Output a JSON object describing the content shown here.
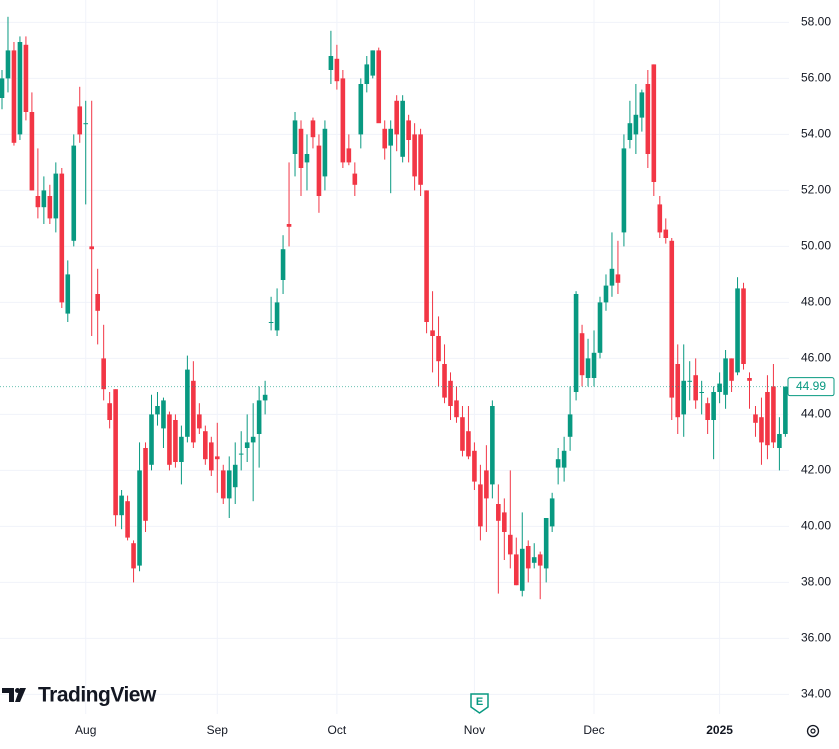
{
  "chart_data": {
    "type": "candlestick",
    "watermark": "TradingView",
    "earnings_marker": "E",
    "up_color": "#089981",
    "down_color": "#f23645",
    "ylim": [
      33.3,
      58.8
    ],
    "yticks": [
      {
        "value": 34,
        "label": "34.00"
      },
      {
        "value": 36,
        "label": "36.00"
      },
      {
        "value": 38,
        "label": "38.00"
      },
      {
        "value": 40,
        "label": "40.00"
      },
      {
        "value": 42,
        "label": "42.00"
      },
      {
        "value": 44,
        "label": "44.00"
      },
      {
        "value": 46,
        "label": "46.00"
      },
      {
        "value": 48,
        "label": "48.00"
      },
      {
        "value": 50,
        "label": "50.00"
      },
      {
        "value": 52,
        "label": "52.00"
      },
      {
        "value": 54,
        "label": "54.00"
      },
      {
        "value": 56,
        "label": "56.00"
      },
      {
        "value": 58,
        "label": "58.00"
      }
    ],
    "grid": true,
    "categories": [
      null,
      null,
      null,
      null,
      null,
      null,
      null,
      null,
      null,
      null,
      null,
      null,
      null,
      null,
      "Aug",
      null,
      null,
      null,
      null,
      null,
      null,
      null,
      null,
      null,
      null,
      null,
      null,
      null,
      null,
      null,
      null,
      null,
      null,
      null,
      null,
      null,
      "Sep",
      null,
      null,
      null,
      null,
      null,
      null,
      null,
      null,
      null,
      null,
      null,
      null,
      null,
      null,
      null,
      null,
      null,
      null,
      null,
      "Oct",
      null,
      null,
      null,
      null,
      null,
      null,
      null,
      null,
      null,
      null,
      null,
      null,
      null,
      null,
      null,
      null,
      null,
      null,
      null,
      null,
      null,
      null,
      "Nov",
      null,
      null,
      null,
      null,
      null,
      null,
      null,
      null,
      null,
      null,
      null,
      null,
      null,
      null,
      null,
      null,
      null,
      null,
      null,
      "Dec",
      null,
      null,
      null,
      null,
      null,
      null,
      null,
      null,
      null,
      null,
      null,
      null,
      null,
      null,
      null,
      null,
      null,
      null,
      null,
      null,
      "2025",
      null,
      null,
      null,
      null,
      null,
      null,
      null,
      null,
      null,
      null,
      null
    ],
    "ohlc": [
      [
        55.3,
        56.3,
        54.9,
        56.0
      ],
      [
        56.0,
        58.2,
        55.5,
        57.0
      ],
      [
        57.0,
        57.3,
        53.6,
        53.7
      ],
      [
        54.0,
        57.5,
        53.8,
        57.3
      ],
      [
        57.2,
        57.5,
        54.5,
        54.8
      ],
      [
        54.8,
        55.5,
        52.0,
        52.0
      ],
      [
        51.8,
        53.5,
        51.0,
        51.4
      ],
      [
        51.4,
        52.5,
        50.8,
        52.0
      ],
      [
        51.8,
        52.2,
        50.8,
        51.0
      ],
      [
        51.0,
        53.0,
        50.5,
        52.6
      ],
      [
        52.6,
        52.8,
        47.8,
        48.0
      ],
      [
        47.6,
        49.5,
        47.3,
        49.0
      ],
      [
        50.2,
        54.0,
        50.0,
        53.6
      ],
      [
        55.0,
        55.7,
        53.7,
        54.0
      ],
      [
        54.4,
        55.2,
        51.5,
        54.4
      ],
      [
        50.0,
        55.2,
        46.8,
        49.9
      ],
      [
        48.3,
        49.2,
        46.5,
        47.7
      ],
      [
        46.0,
        47.2,
        44.5,
        44.9
      ],
      [
        44.4,
        44.8,
        43.5,
        43.8
      ],
      [
        44.9,
        44.9,
        40.0,
        40.4
      ],
      [
        40.4,
        41.3,
        39.9,
        41.1
      ],
      [
        40.9,
        41.1,
        39.5,
        39.6
      ],
      [
        39.4,
        39.5,
        38.0,
        38.5
      ],
      [
        38.6,
        43.0,
        38.4,
        42.0
      ],
      [
        42.8,
        43.0,
        39.8,
        40.2
      ],
      [
        42.2,
        44.7,
        42.0,
        44.0
      ],
      [
        44.0,
        44.8,
        43.6,
        44.3
      ],
      [
        43.5,
        44.6,
        42.8,
        44.5
      ],
      [
        44.0,
        44.1,
        42.0,
        42.2
      ],
      [
        43.8,
        44.0,
        42.1,
        42.3
      ],
      [
        42.3,
        43.6,
        41.5,
        43.2
      ],
      [
        43.2,
        46.1,
        43.0,
        45.6
      ],
      [
        45.2,
        45.9,
        42.8,
        43.0
      ],
      [
        44.0,
        44.4,
        43.3,
        43.5
      ],
      [
        43.4,
        43.6,
        42.2,
        42.4
      ],
      [
        43.0,
        43.2,
        41.8,
        42.0
      ],
      [
        42.5,
        43.7,
        41.2,
        42.4
      ],
      [
        42.0,
        42.2,
        40.8,
        41.0
      ],
      [
        41.0,
        42.5,
        40.3,
        42.0
      ],
      [
        41.4,
        43.0,
        40.8,
        42.2
      ],
      [
        42.6,
        43.4,
        42.0,
        42.6
      ],
      [
        42.8,
        44.0,
        42.3,
        43.0
      ],
      [
        43.0,
        44.4,
        40.9,
        43.2
      ],
      [
        43.3,
        45.0,
        42.1,
        44.5
      ],
      [
        44.5,
        45.2,
        44.0,
        44.7
      ],
      [
        47.3,
        48.2,
        47.0,
        47.3
      ],
      [
        47.0,
        48.5,
        46.8,
        48.0
      ],
      [
        48.8,
        50.4,
        48.3,
        49.9
      ],
      [
        50.8,
        53.0,
        50.0,
        50.7
      ],
      [
        53.3,
        54.8,
        52.5,
        54.5
      ],
      [
        54.2,
        54.5,
        51.8,
        52.8
      ],
      [
        53.0,
        54.0,
        52.0,
        53.3
      ],
      [
        54.5,
        54.6,
        53.5,
        53.9
      ],
      [
        53.6,
        54.0,
        51.2,
        51.8
      ],
      [
        52.5,
        54.5,
        52.0,
        54.2
      ],
      [
        56.3,
        57.7,
        55.8,
        56.8
      ],
      [
        56.7,
        57.2,
        55.6,
        55.9
      ],
      [
        56.0,
        56.3,
        52.8,
        53.0
      ],
      [
        53.5,
        54.0,
        52.9,
        53.0
      ],
      [
        52.6,
        53.0,
        51.8,
        52.2
      ],
      [
        54.0,
        56.0,
        53.5,
        55.8
      ],
      [
        55.8,
        56.8,
        55.5,
        56.5
      ],
      [
        56.1,
        57.0,
        56.0,
        57.0
      ],
      [
        57.0,
        57.1,
        54.5,
        54.4
      ],
      [
        54.2,
        54.5,
        53.1,
        53.5
      ],
      [
        53.6,
        54.5,
        51.9,
        54.2
      ],
      [
        55.2,
        55.4,
        53.4,
        54.0
      ],
      [
        53.2,
        55.4,
        53.0,
        55.2
      ],
      [
        54.5,
        54.7,
        53.0,
        53.8
      ],
      [
        54.0,
        54.4,
        52.0,
        52.5
      ],
      [
        54.0,
        54.2,
        51.8,
        52.2
      ],
      [
        52.0,
        52.0,
        46.9,
        47.3
      ],
      [
        47.0,
        48.4,
        45.5,
        46.8
      ],
      [
        46.8,
        47.5,
        45.0,
        45.9
      ],
      [
        45.8,
        46.5,
        44.4,
        44.6
      ],
      [
        45.2,
        45.5,
        43.8,
        44.3
      ],
      [
        44.5,
        45.0,
        43.7,
        43.9
      ],
      [
        43.9,
        44.3,
        42.5,
        42.7
      ],
      [
        43.4,
        44.3,
        42.4,
        42.5
      ],
      [
        42.7,
        43.0,
        41.3,
        41.6
      ],
      [
        41.5,
        42.2,
        39.5,
        40.0
      ],
      [
        42.0,
        42.9,
        39.8,
        41.0
      ],
      [
        41.5,
        44.5,
        41.0,
        44.3
      ],
      [
        40.8,
        41.5,
        37.6,
        40.2
      ],
      [
        40.5,
        41.0,
        38.8,
        39.8
      ],
      [
        39.7,
        42.0,
        38.5,
        39.0
      ],
      [
        39.0,
        39.6,
        37.9,
        37.9
      ],
      [
        37.7,
        40.5,
        37.5,
        39.2
      ],
      [
        39.3,
        39.5,
        38.0,
        38.5
      ],
      [
        38.7,
        39.4,
        38.5,
        38.9
      ],
      [
        39.0,
        39.1,
        37.4,
        38.6
      ],
      [
        38.5,
        40.3,
        38.0,
        40.3
      ],
      [
        40.0,
        41.2,
        39.8,
        41.0
      ],
      [
        42.1,
        42.8,
        41.5,
        42.4
      ],
      [
        42.1,
        43.2,
        41.6,
        42.7
      ],
      [
        43.2,
        45.0,
        42.7,
        44.0
      ],
      [
        44.8,
        48.4,
        44.5,
        48.3
      ],
      [
        46.9,
        47.2,
        45.0,
        45.4
      ],
      [
        45.3,
        46.7,
        45.0,
        46.0
      ],
      [
        45.3,
        47.0,
        45.0,
        46.2
      ],
      [
        46.2,
        48.2,
        46.0,
        48.0
      ],
      [
        48.0,
        49.0,
        47.7,
        48.6
      ],
      [
        48.6,
        50.5,
        48.2,
        49.2
      ],
      [
        49.0,
        50.2,
        48.3,
        48.7
      ],
      [
        50.5,
        54.0,
        50.0,
        53.5
      ],
      [
        53.8,
        55.2,
        53.5,
        54.4
      ],
      [
        54.0,
        55.8,
        53.3,
        54.7
      ],
      [
        54.6,
        55.6,
        54.1,
        55.5
      ],
      [
        55.8,
        56.3,
        52.8,
        53.3
      ],
      [
        56.5,
        56.5,
        51.8,
        52.3
      ],
      [
        51.5,
        51.8,
        50.3,
        50.5
      ],
      [
        50.6,
        51.0,
        50.1,
        50.3
      ],
      [
        50.2,
        50.3,
        43.8,
        44.6
      ],
      [
        45.8,
        46.5,
        43.3,
        43.9
      ],
      [
        44.0,
        46.5,
        43.2,
        45.2
      ],
      [
        45.2,
        45.9,
        44.5,
        45.2
      ],
      [
        45.4,
        46.0,
        44.2,
        44.5
      ],
      [
        44.8,
        45.2,
        44.0,
        44.8
      ],
      [
        44.4,
        44.6,
        43.3,
        43.8
      ],
      [
        43.8,
        45.0,
        42.4,
        44.8
      ],
      [
        44.8,
        45.5,
        44.4,
        45.1
      ],
      [
        44.7,
        46.3,
        44.2,
        46.0
      ],
      [
        46.0,
        46.0,
        44.8,
        45.2
      ],
      [
        45.5,
        48.9,
        45.4,
        48.5
      ],
      [
        48.5,
        48.7,
        45.6,
        45.8
      ],
      [
        45.3,
        45.5,
        44.2,
        45.2
      ],
      [
        44.0,
        44.3,
        43.2,
        43.7
      ],
      [
        43.9,
        44.6,
        42.2,
        43.0
      ],
      [
        44.8,
        45.4,
        42.4,
        42.9
      ],
      [
        45.0,
        45.8,
        42.8,
        43.0
      ],
      [
        42.8,
        43.9,
        42.0,
        43.3
      ],
      [
        43.3,
        45.0,
        43.2,
        44.99
      ]
    ]
  }
}
